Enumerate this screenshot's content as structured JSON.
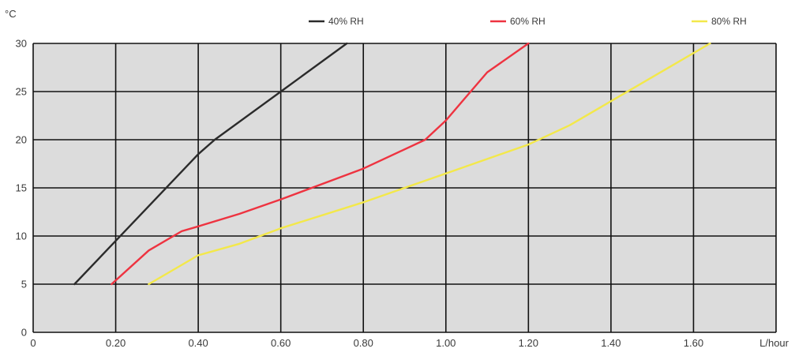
{
  "chart_data": {
    "type": "line",
    "ylabel": "°C",
    "xlabel": "L/hour",
    "xlim": [
      0,
      1.8
    ],
    "ylim": [
      0,
      30
    ],
    "x_ticks": [
      0,
      0.2,
      0.4,
      0.6,
      0.8,
      1.0,
      1.2,
      1.4,
      1.6
    ],
    "x_tick_labels": [
      "0",
      "0.20",
      "0.40",
      "0.60",
      "0.80",
      "1.00",
      "1.20",
      "1.40",
      "1.60"
    ],
    "y_ticks": [
      0,
      5,
      10,
      15,
      20,
      25,
      30
    ],
    "y_tick_labels": [
      "0",
      "5",
      "10",
      "15",
      "20",
      "25",
      "30"
    ],
    "grid": true,
    "legend_position": "top",
    "plot_background": "#dcdcdc",
    "series": [
      {
        "name": "40% RH",
        "color": "#2b2b2b",
        "x": [
          0.1,
          0.2,
          0.4,
          0.44,
          0.6,
          0.76
        ],
        "y": [
          5,
          9.5,
          18.5,
          20,
          25,
          30
        ]
      },
      {
        "name": "60% RH",
        "color": "#ee3340",
        "x": [
          0.19,
          0.28,
          0.36,
          0.4,
          0.5,
          0.6,
          0.8,
          0.95,
          1.0,
          1.05,
          1.1,
          1.2
        ],
        "y": [
          5,
          8.5,
          10.5,
          11,
          12.3,
          13.8,
          17,
          20,
          22,
          24.5,
          27,
          30
        ]
      },
      {
        "name": "80% RH",
        "color": "#f3e84a",
        "x": [
          0.28,
          0.36,
          0.4,
          0.5,
          0.6,
          0.8,
          1.0,
          1.2,
          1.3,
          1.4,
          1.5,
          1.64
        ],
        "y": [
          5,
          7,
          8,
          9.2,
          10.8,
          13.5,
          16.5,
          19.5,
          21.5,
          24,
          26.5,
          30
        ]
      }
    ]
  }
}
